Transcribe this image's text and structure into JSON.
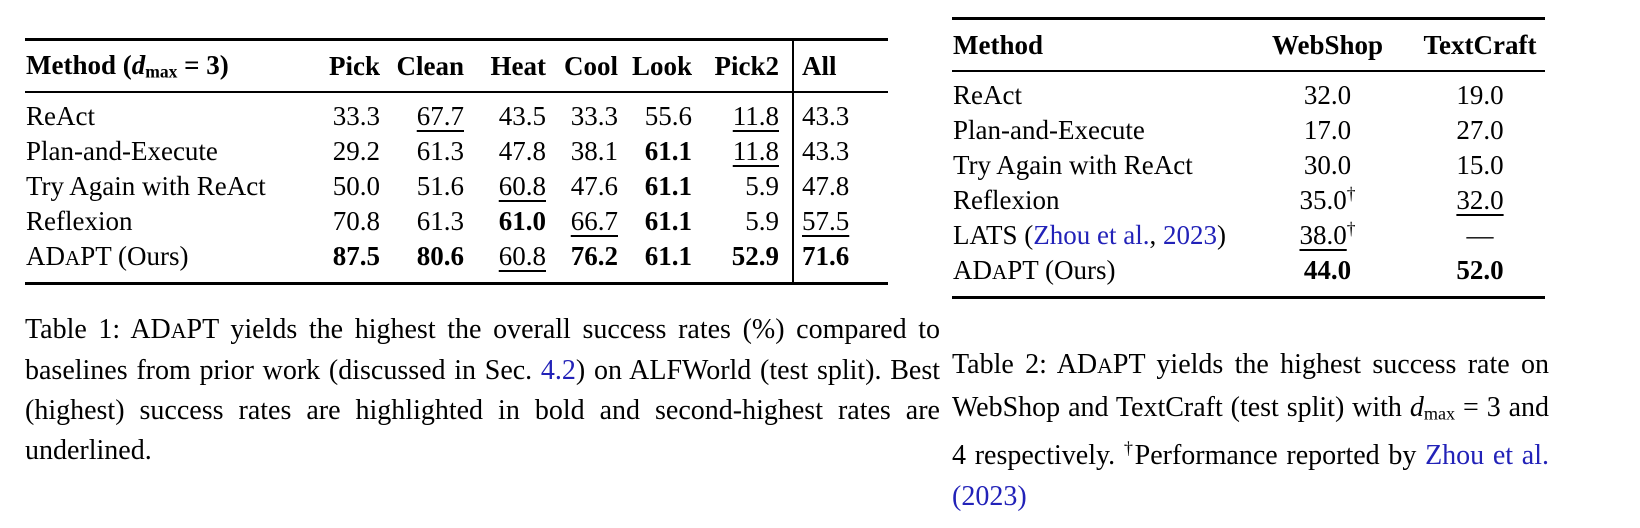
{
  "page": {
    "background": "#ffffff",
    "link_color": "#2222b8",
    "text_color": "#000000"
  },
  "table1": {
    "name": "alfworld-results-table",
    "header_method": [
      {
        "t": "Method",
        "b": true
      },
      {
        "t": " ("
      },
      {
        "t": "d",
        "i": true
      },
      {
        "t": "max",
        "sub": true
      },
      {
        "t": " = 3)"
      }
    ],
    "columns": [
      "Pick",
      "Clean",
      "Heat",
      "Cool",
      "Look",
      "Pick2",
      "All"
    ],
    "rows": [
      {
        "method": [
          {
            "t": "ReAct"
          }
        ],
        "cells": [
          {
            "t": "33.3"
          },
          {
            "t": "67.7",
            "u": true
          },
          {
            "t": "43.5"
          },
          {
            "t": "33.3"
          },
          {
            "t": "55.6"
          },
          {
            "t": "11.8",
            "u": true
          },
          {
            "t": "43.3"
          }
        ]
      },
      {
        "method": [
          {
            "t": "Plan-and-Execute"
          }
        ],
        "cells": [
          {
            "t": "29.2"
          },
          {
            "t": "61.3"
          },
          {
            "t": "47.8"
          },
          {
            "t": "38.1"
          },
          {
            "t": "61.1",
            "b": true
          },
          {
            "t": "11.8",
            "u": true
          },
          {
            "t": "43.3"
          }
        ]
      },
      {
        "method": [
          {
            "t": "Try Again with ReAct"
          }
        ],
        "cells": [
          {
            "t": "50.0"
          },
          {
            "t": "51.6"
          },
          {
            "t": "60.8",
            "u": true
          },
          {
            "t": "47.6"
          },
          {
            "t": "61.1",
            "b": true
          },
          {
            "t": "5.9"
          },
          {
            "t": "47.8"
          }
        ]
      },
      {
        "method": [
          {
            "t": "Reflexion"
          }
        ],
        "cells": [
          {
            "t": "70.8"
          },
          {
            "t": "61.3"
          },
          {
            "t": "61.0",
            "b": true
          },
          {
            "t": "66.7",
            "u": true
          },
          {
            "t": "61.1",
            "b": true
          },
          {
            "t": "5.9"
          },
          {
            "t": "57.5",
            "u": true
          }
        ]
      },
      {
        "method": [
          {
            "t": "AD"
          },
          {
            "t": "A",
            "sc": true
          },
          {
            "t": "PT (Ours)"
          }
        ],
        "cells": [
          {
            "t": "87.5",
            "b": true
          },
          {
            "t": "80.6",
            "b": true
          },
          {
            "t": "60.8",
            "u": true
          },
          {
            "t": "76.2",
            "b": true
          },
          {
            "t": "61.1",
            "b": true
          },
          {
            "t": "52.9",
            "b": true
          },
          {
            "t": "71.6",
            "b": true
          }
        ]
      }
    ]
  },
  "table2": {
    "name": "webshop-textcraft-results-table",
    "header_method": [
      {
        "t": "Method",
        "b": true
      }
    ],
    "columns": [
      "WebShop",
      "TextCraft"
    ],
    "rows": [
      {
        "method": [
          {
            "t": "ReAct"
          }
        ],
        "cells": [
          {
            "t": "32.0"
          },
          {
            "t": "19.0"
          }
        ]
      },
      {
        "method": [
          {
            "t": "Plan-and-Execute"
          }
        ],
        "cells": [
          {
            "t": "17.0"
          },
          {
            "t": "27.0"
          }
        ]
      },
      {
        "method": [
          {
            "t": "Try Again with ReAct"
          }
        ],
        "cells": [
          {
            "t": "30.0"
          },
          {
            "t": "15.0"
          }
        ]
      },
      {
        "method": [
          {
            "t": "Reflexion"
          }
        ],
        "cells": [
          {
            "t": "35.0",
            "sup": "†"
          },
          {
            "t": "32.0",
            "u": true
          }
        ]
      },
      {
        "method": [
          {
            "t": "LATS ("
          },
          {
            "t": "Zhou et al.",
            "link": true
          },
          {
            "t": ", "
          },
          {
            "t": "2023",
            "link": true
          },
          {
            "t": ")"
          }
        ],
        "cells": [
          {
            "t": "38.0",
            "u": true,
            "sup": "†"
          },
          {
            "t": "—"
          }
        ]
      },
      {
        "method": [
          {
            "t": "AD"
          },
          {
            "t": "A",
            "sc": true
          },
          {
            "t": "PT (Ours)"
          }
        ],
        "cells": [
          {
            "t": "44.0",
            "b": true
          },
          {
            "t": "52.0",
            "b": true
          }
        ]
      }
    ]
  },
  "caption1": [
    {
      "t": "Table 1: "
    },
    {
      "t": "AD"
    },
    {
      "t": "A",
      "sc": true
    },
    {
      "t": "PT yields the highest the overall success rates (%) compared to baselines from prior work (discussed in Sec. "
    },
    {
      "t": "4.2",
      "link": true
    },
    {
      "t": ") on ALFWorld (test split). Best (highest) success rates are highlighted in bold and second-highest rates are underlined."
    }
  ],
  "caption2": [
    {
      "t": "Table 2: "
    },
    {
      "t": "AD"
    },
    {
      "t": "A",
      "sc": true
    },
    {
      "t": "PT yields the highest success rate on WebShop and TextCraft (test split) with "
    },
    {
      "t": "d",
      "i": true
    },
    {
      "t": "max",
      "sub": true
    },
    {
      "t": " = 3 and 4 respectively. "
    },
    {
      "t": "†",
      "supseg": true
    },
    {
      "t": "Performance reported by "
    },
    {
      "t": "Zhou et al.",
      "link": true
    },
    {
      "t": " "
    },
    {
      "t": "(2023)",
      "link": true
    }
  ]
}
